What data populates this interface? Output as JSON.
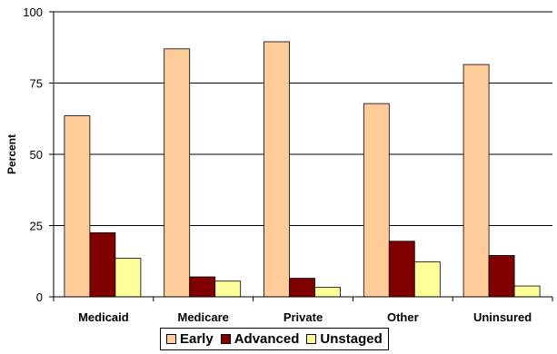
{
  "chart_data": {
    "type": "bar",
    "title": "",
    "xlabel": "",
    "ylabel": "Percent",
    "ylim": [
      0,
      100
    ],
    "yticks": [
      0,
      25,
      50,
      75,
      100
    ],
    "grid": true,
    "legend_position": "bottom",
    "categories": [
      "Medicaid",
      "Medicare",
      "Private",
      "Other",
      "Uninsured"
    ],
    "series": [
      {
        "name": "Early",
        "color": "#FFCC99",
        "values": [
          63.5,
          87.0,
          89.5,
          67.8,
          81.5
        ]
      },
      {
        "name": "Advanced",
        "color": "#800000",
        "values": [
          22.5,
          7.0,
          6.5,
          19.5,
          14.5
        ]
      },
      {
        "name": "Unstaged",
        "color": "#FFFF99",
        "values": [
          13.5,
          5.5,
          3.3,
          12.3,
          3.8
        ]
      }
    ]
  }
}
